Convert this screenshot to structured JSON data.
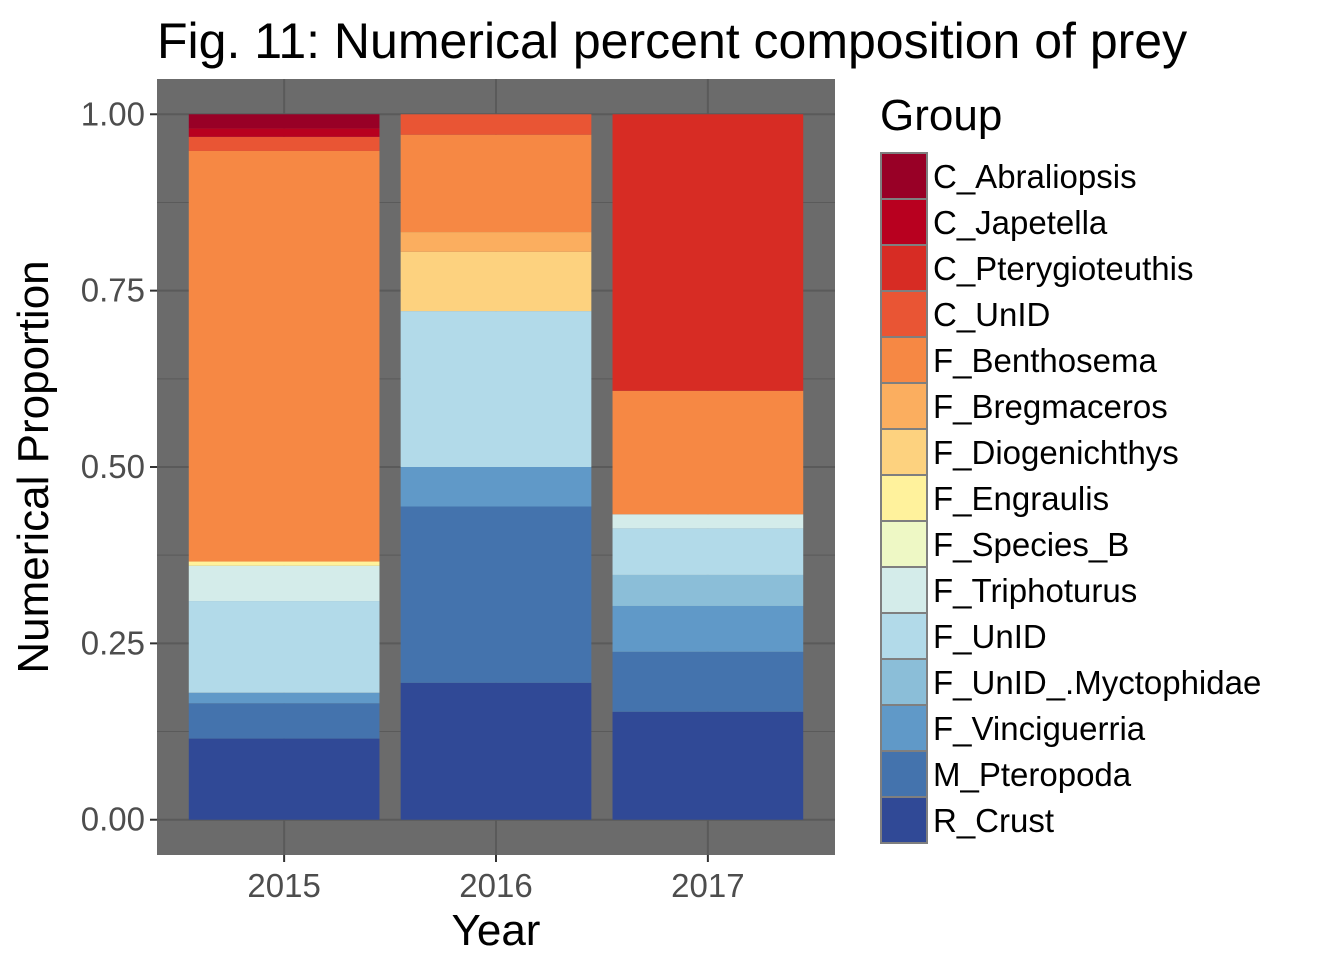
{
  "chart_data": {
    "type": "bar",
    "stacked": true,
    "title": "Fig. 11: Numerical percent composition of prey",
    "xlabel": "Year",
    "ylabel": "Numerical Proportion",
    "categories": [
      "2015",
      "2016",
      "2017"
    ],
    "ylim": [
      -0.05,
      1.05
    ],
    "yticks": [
      0.0,
      0.25,
      0.5,
      0.75,
      1.0
    ],
    "ytick_labels": [
      "0.00",
      "0.25",
      "0.50",
      "0.75",
      "1.00"
    ],
    "grid": true,
    "panel_background": "#6b6b6b",
    "grid_color": "#5a5a5a",
    "legend": {
      "title": "Group",
      "position": "right"
    },
    "series": [
      {
        "name": "C_Abraliopsis",
        "color": "#980026",
        "values": [
          0.02,
          0.0,
          0.0
        ]
      },
      {
        "name": "C_Japetella",
        "color": "#b8001f",
        "values": [
          0.012,
          0.0,
          0.0
        ]
      },
      {
        "name": "C_Pterygioteuthis",
        "color": "#d72c24",
        "values": [
          0.0,
          0.0,
          0.392
        ]
      },
      {
        "name": "C_UnID",
        "color": "#e95534",
        "values": [
          0.02,
          0.029,
          0.0
        ]
      },
      {
        "name": "F_Benthosema",
        "color": "#f68844",
        "values": [
          0.582,
          0.138,
          0.175
        ]
      },
      {
        "name": "F_Bregmaceros",
        "color": "#fbae5f",
        "values": [
          0.0,
          0.028,
          0.0
        ]
      },
      {
        "name": "F_Diogenichthys",
        "color": "#fdd27f",
        "values": [
          0.0,
          0.084,
          0.0
        ]
      },
      {
        "name": "F_Engraulis",
        "color": "#fff29c",
        "values": [
          0.006,
          0.0,
          0.0
        ]
      },
      {
        "name": "F_Species_B",
        "color": "#eef8c5",
        "values": [
          0.0,
          0.0,
          0.0
        ]
      },
      {
        "name": "F_Triphoturus",
        "color": "#d4ecea",
        "values": [
          0.05,
          0.0,
          0.02
        ]
      },
      {
        "name": "F_UnID",
        "color": "#b2dae9",
        "values": [
          0.13,
          0.221,
          0.066
        ]
      },
      {
        "name": "F_UnID_.Myctophidae",
        "color": "#8bbed8",
        "values": [
          0.0,
          0.0,
          0.044
        ]
      },
      {
        "name": "F_Vinciguerria",
        "color": "#6099c8",
        "values": [
          0.015,
          0.056,
          0.065
        ]
      },
      {
        "name": "M_Pteropoda",
        "color": "#4473ad",
        "values": [
          0.05,
          0.25,
          0.085
        ]
      },
      {
        "name": "R_Crust",
        "color": "#304996",
        "values": [
          0.115,
          0.194,
          0.153
        ]
      }
    ]
  }
}
